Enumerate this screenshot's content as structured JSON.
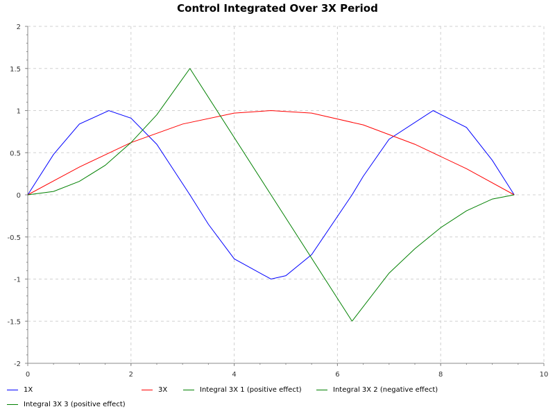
{
  "chart_data": {
    "type": "line",
    "title": "Control Integrated Over 3X Period",
    "xlabel": "",
    "ylabel": "",
    "xlim": [
      0,
      10
    ],
    "ylim": [
      -2,
      2
    ],
    "x_ticks": [
      "0",
      "2",
      "4",
      "6",
      "8",
      "10"
    ],
    "y_ticks": [
      "2",
      "1.5",
      "1",
      "0.5",
      "0",
      "-0.5",
      "-1",
      "-1.5",
      "-2"
    ],
    "grid": true,
    "legend_position": "bottom",
    "series": [
      {
        "name": "1X",
        "color": "#0000ff",
        "x": [
          0,
          0.5,
          1.0,
          1.5708,
          2.0,
          2.5,
          3.1416,
          3.5,
          4.0,
          4.7124,
          5.0,
          5.5,
          6.2832,
          6.5,
          7.0,
          7.854,
          8.5,
          9.0,
          9.4248
        ],
        "y": [
          0,
          0.48,
          0.84,
          1.0,
          0.91,
          0.6,
          0.0,
          -0.35,
          -0.76,
          -1.0,
          -0.96,
          -0.71,
          0.0,
          0.22,
          0.66,
          1.0,
          0.8,
          0.41,
          0.0
        ]
      },
      {
        "name": "3X",
        "color": "#ff0000",
        "x": [
          0,
          1.0,
          2.0,
          3.0,
          4.0,
          4.7124,
          5.5,
          6.5,
          7.5,
          8.5,
          9.4248
        ],
        "y": [
          0,
          0.33,
          0.62,
          0.84,
          0.97,
          1.0,
          0.97,
          0.83,
          0.6,
          0.31,
          0.0
        ]
      },
      {
        "name": "Integral 3X 1 (positive effect)",
        "color": "#008000",
        "x": [
          0,
          0.5,
          1.0,
          1.5,
          2.0,
          2.5,
          3.1416
        ],
        "y": [
          0,
          0.04,
          0.16,
          0.35,
          0.62,
          0.95,
          1.5
        ]
      },
      {
        "name": "Integral 3X 2 (negative effect)",
        "color": "#008000",
        "x": [
          3.1416,
          4.7124,
          6.2832
        ],
        "y": [
          1.5,
          0.0,
          -1.5
        ]
      },
      {
        "name": "Integral 3X 3 (positive effect)",
        "color": "#008000",
        "x": [
          6.2832,
          7.0,
          7.5,
          8.0,
          8.5,
          9.0,
          9.4248
        ],
        "y": [
          -1.5,
          -0.93,
          -0.64,
          -0.39,
          -0.19,
          -0.05,
          0.0
        ]
      }
    ]
  }
}
